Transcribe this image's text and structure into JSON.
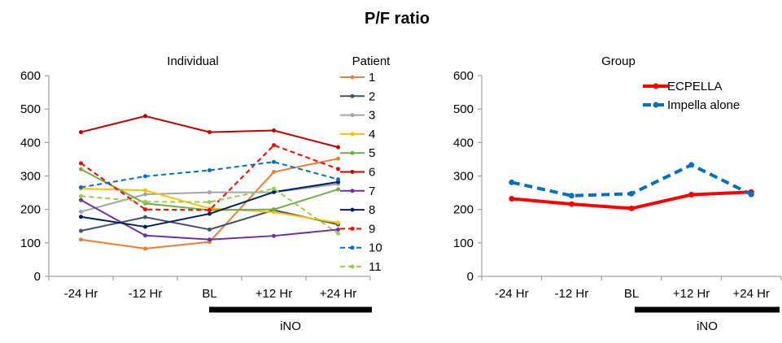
{
  "title": "P/F ratio",
  "chart_data": [
    {
      "type": "line",
      "title": "Individual",
      "categories": [
        "-24 Hr",
        "-12 Hr",
        "BL",
        "+12 Hr",
        "+24 Hr"
      ],
      "ylim": [
        0,
        600
      ],
      "yticks": [
        "0",
        "100",
        "200",
        "300",
        "400",
        "500",
        "600"
      ],
      "legend_title": "Patient",
      "bar_label": "iNO",
      "series": [
        {
          "name": "1",
          "color": "#ED7D31",
          "dash": false,
          "values": [
            110,
            83,
            103,
            312,
            352
          ]
        },
        {
          "name": "2",
          "color": "#44546A",
          "dash": false,
          "values": [
            136,
            177,
            140,
            198,
            155
          ]
        },
        {
          "name": "3",
          "color": "#A5A5A5",
          "dash": false,
          "values": [
            193,
            245,
            251,
            251,
            276
          ]
        },
        {
          "name": "4",
          "color": "#FFC000",
          "dash": false,
          "values": [
            262,
            257,
            203,
            192,
            160
          ]
        },
        {
          "name": "5",
          "color": "#70AD47",
          "dash": false,
          "values": [
            320,
            218,
            198,
            200,
            260
          ]
        },
        {
          "name": "6",
          "color": "#C00000",
          "dash": false,
          "values": [
            431,
            479,
            431,
            436,
            386
          ]
        },
        {
          "name": "7",
          "color": "#7030A0",
          "dash": false,
          "values": [
            228,
            122,
            110,
            121,
            140
          ]
        },
        {
          "name": "8",
          "color": "#002060",
          "dash": false,
          "values": [
            178,
            148,
            187,
            252,
            282
          ]
        },
        {
          "name": "9",
          "color": "#FF0000",
          "dash": true,
          "values": [
            338,
            200,
            198,
            392,
            321
          ]
        },
        {
          "name": "10",
          "color": "#0070C0",
          "dash": true,
          "values": [
            266,
            299,
            317,
            342,
            290
          ]
        },
        {
          "name": "11",
          "color": "#92D050",
          "dash": true,
          "values": [
            240,
            223,
            222,
            262,
            128
          ]
        }
      ]
    },
    {
      "type": "line",
      "title": "Group",
      "categories": [
        "-24 Hr",
        "-12 Hr",
        "BL",
        "+12 Hr",
        "+24 Hr"
      ],
      "ylim": [
        0,
        600
      ],
      "yticks": [
        "0",
        "100",
        "200",
        "300",
        "400",
        "500",
        "600"
      ],
      "legend_position": "top-right",
      "bar_label": "iNO",
      "series": [
        {
          "name": "ECPELLA",
          "color": "#FF0000",
          "dash": false,
          "values": [
            232,
            216,
            203,
            244,
            252
          ]
        },
        {
          "name": "Impella alone",
          "color": "#0070C0",
          "dash": true,
          "values": [
            281,
            241,
            247,
            333,
            245
          ]
        }
      ]
    }
  ]
}
